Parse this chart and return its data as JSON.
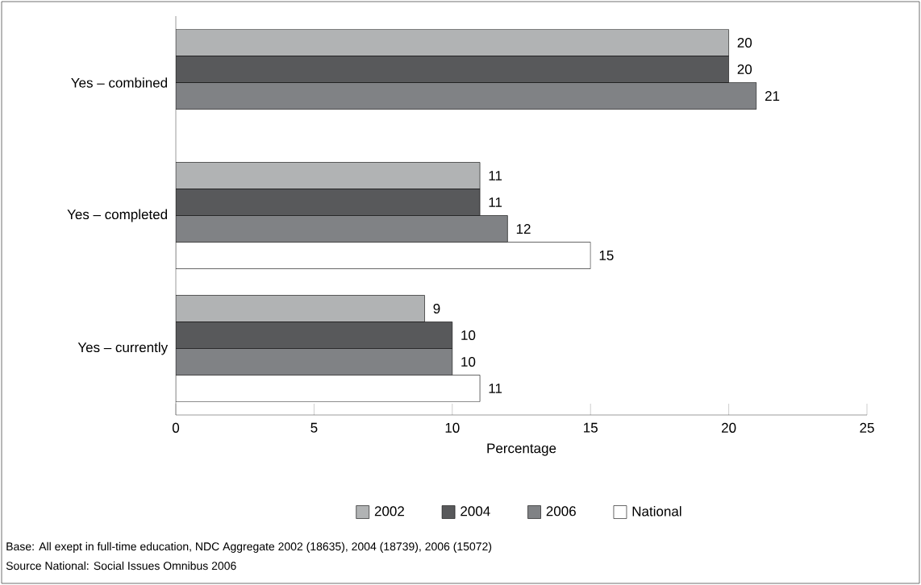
{
  "chart_data": {
    "type": "bar",
    "orientation": "horizontal",
    "xlabel": "Percentage",
    "categories": [
      "Yes – combined",
      "Yes – completed",
      "Yes – currently"
    ],
    "series": [
      {
        "name": "2002",
        "color": "#b1b3b4",
        "values": [
          20,
          11,
          9
        ]
      },
      {
        "name": "2004",
        "color": "#58595b",
        "values": [
          20,
          11,
          10
        ]
      },
      {
        "name": "2006",
        "color": "#808285",
        "values": [
          21,
          12,
          10
        ]
      },
      {
        "name": "National",
        "color": "#ffffff",
        "values": [
          null,
          15,
          11
        ]
      }
    ],
    "xlim": [
      0,
      25
    ],
    "xticks": [
      0,
      5,
      10,
      15,
      20,
      25
    ],
    "data_labels": true,
    "legend": "bottom",
    "annotations": [
      "Base: All exept in full-time education, NDC Aggregate 2002 (18635), 2004 (18739), 2006 (15072)",
      "Source National: Social Issues Omnibus 2006"
    ]
  }
}
